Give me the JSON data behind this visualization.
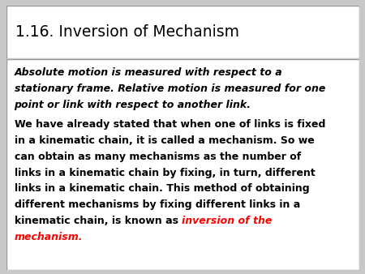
{
  "title": "1.16. Inversion of Mechanism",
  "title_fontsize": 13.5,
  "bg_color": "#c8c8c8",
  "title_box_color": "#ffffff",
  "title_box_edge": "#999999",
  "content_box_color": "#ffffff",
  "content_box_edge": "#999999",
  "text_fontsize": 9.0,
  "p1_lines": [
    "Absolute motion is measured with respect to a",
    "stationary frame. Relative motion is measured for one",
    "point or link with respect to another link."
  ],
  "p2_lines": [
    "We have already stated that when one of links is fixed",
    "in a kinematic chain, it is called a mechanism. So we",
    "can obtain as many mechanisms as the number of",
    "links in a kinematic chain by fixing, in turn, different",
    "links in a kinematic chain. This method of obtaining",
    "different mechanisms by fixing different links in a",
    "kinematic chain, is known as "
  ],
  "p2_red": "inversion of the mechanism.",
  "p2_last_black": "kinematic chain, is known as ",
  "p2_last_line_idx": 6,
  "mechanism_line": "mechanism."
}
